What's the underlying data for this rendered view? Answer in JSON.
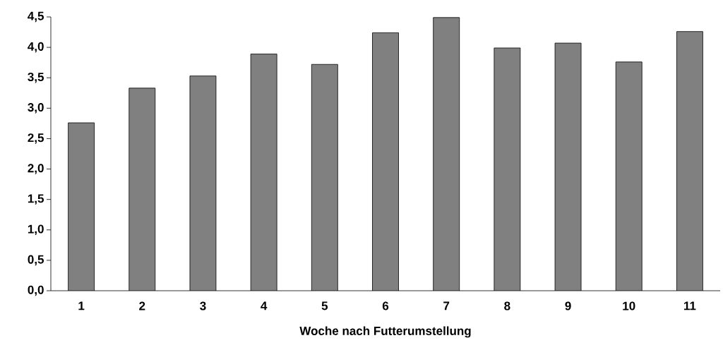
{
  "chart_data": {
    "type": "bar",
    "xlabel": "Woche nach Futterumstellung",
    "categories": [
      "1",
      "2",
      "3",
      "4",
      "5",
      "6",
      "7",
      "8",
      "9",
      "10",
      "11"
    ],
    "values": [
      2.76,
      3.33,
      3.53,
      3.89,
      3.72,
      4.24,
      4.49,
      3.99,
      4.07,
      3.76,
      4.26
    ],
    "color": "#808080",
    "ylim": [
      0,
      4.5
    ],
    "yticks": [
      {
        "value": 0,
        "label": "0,0"
      },
      {
        "value": 0.5,
        "label": "0,5"
      },
      {
        "value": 1,
        "label": "1,0"
      },
      {
        "value": 1.5,
        "label": "1,5"
      },
      {
        "value": 2,
        "label": "2,0"
      },
      {
        "value": 2.5,
        "label": "2,5"
      },
      {
        "value": 3,
        "label": "3,0"
      },
      {
        "value": 3.5,
        "label": "3,5"
      },
      {
        "value": 4,
        "label": "4,0"
      },
      {
        "value": 4.5,
        "label": "4,5"
      }
    ],
    "grid": false
  }
}
